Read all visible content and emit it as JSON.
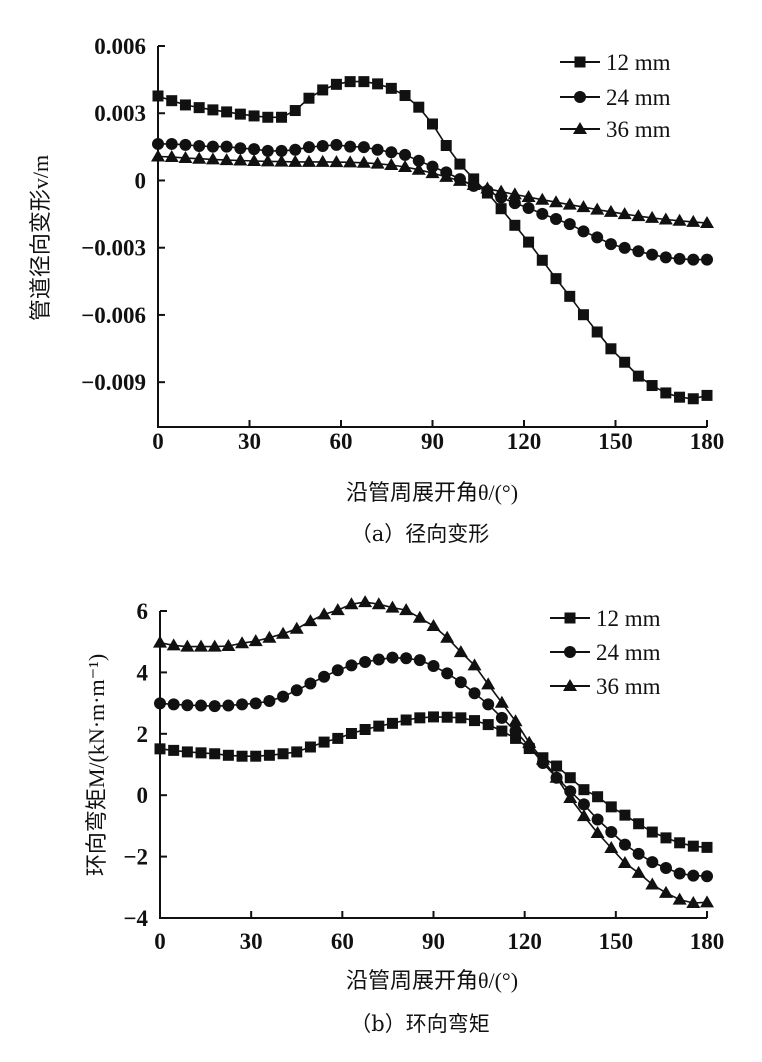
{
  "chart_data": [
    {
      "type": "line",
      "caption": "（a）径向变形",
      "xlabel": "沿管周展开角θ/(°)",
      "ylabel": "管道径向变形v/m",
      "xlim": [
        0,
        180
      ],
      "ylim": [
        -0.011,
        0.006
      ],
      "xticks": [
        "0",
        "30",
        "60",
        "90",
        "120",
        "150",
        "180"
      ],
      "yticks": [
        "0.006",
        "0.003",
        "0",
        "-0.003",
        "-0.006",
        "-0.009"
      ],
      "ytick_values": [
        0.006,
        0.003,
        0,
        -0.003,
        -0.006,
        -0.009
      ],
      "legend_position": "top-right",
      "grid": false,
      "x": [
        0,
        4.5,
        9,
        13.5,
        18,
        22.5,
        27,
        31.5,
        36,
        40.5,
        45,
        49.5,
        54,
        58.5,
        63,
        67.5,
        72,
        76.5,
        81,
        85.5,
        90,
        94.5,
        99,
        103.5,
        108,
        112.5,
        117,
        121.5,
        126,
        130.5,
        135,
        139.5,
        144,
        148.5,
        153,
        157.5,
        162,
        166.5,
        171,
        175.5,
        180
      ],
      "series": [
        {
          "name": "12 mm",
          "marker": "square",
          "values": [
            0.00377,
            0.00356,
            0.00337,
            0.00325,
            0.00315,
            0.00306,
            0.00296,
            0.00288,
            0.00282,
            0.00282,
            0.00312,
            0.00367,
            0.00404,
            0.00429,
            0.00441,
            0.00441,
            0.00431,
            0.00411,
            0.00379,
            0.00327,
            0.00252,
            0.00156,
            0.00073,
            7e-05,
            -0.00056,
            -0.00126,
            -0.002,
            -0.00275,
            -0.00356,
            -0.00438,
            -0.00517,
            -0.00599,
            -0.00676,
            -0.00751,
            -0.00811,
            -0.00873,
            -0.00915,
            -0.00948,
            -0.00967,
            -0.00974,
            -0.00959
          ]
        },
        {
          "name": "24 mm",
          "marker": "circle",
          "values": [
            0.00163,
            0.00163,
            0.00159,
            0.00154,
            0.00151,
            0.00151,
            0.00144,
            0.0014,
            0.00132,
            0.00132,
            0.00137,
            0.00149,
            0.00154,
            0.00159,
            0.00151,
            0.00149,
            0.00137,
            0.00126,
            0.00114,
            0.00088,
            0.00062,
            0.00036,
            6e-05,
            -0.00024,
            -0.00046,
            -0.00076,
            -0.00101,
            -0.00123,
            -0.00149,
            -0.00172,
            -0.00195,
            -0.00227,
            -0.00254,
            -0.00284,
            -0.00301,
            -0.00316,
            -0.00331,
            -0.00343,
            -0.0035,
            -0.00353,
            -0.00353
          ]
        },
        {
          "name": "36 mm",
          "marker": "triangle",
          "values": [
            0.00107,
            0.00105,
            0.001,
            0.00097,
            0.00094,
            0.00091,
            0.00089,
            0.00087,
            0.00085,
            0.00084,
            0.00083,
            0.00083,
            0.00083,
            0.00082,
            0.00081,
            0.00079,
            0.00075,
            0.00069,
            0.0006,
            0.00048,
            0.00033,
            0.00016,
            -2e-05,
            -0.0002,
            -0.00036,
            -0.0005,
            -0.00062,
            -0.00074,
            -0.00086,
            -0.00097,
            -0.00108,
            -0.00119,
            -0.0013,
            -0.0014,
            -0.0015,
            -0.00159,
            -0.00167,
            -0.00174,
            -0.0018,
            -0.00185,
            -0.0019
          ]
        }
      ]
    },
    {
      "type": "line",
      "caption": "（b）环向弯矩",
      "xlabel": "沿管周展开角θ/(°)",
      "ylabel": "环向弯矩M/(kN·m·m⁻¹)",
      "xlim": [
        0,
        180
      ],
      "ylim": [
        -4,
        6
      ],
      "xticks": [
        "0",
        "30",
        "60",
        "90",
        "120",
        "150",
        "180"
      ],
      "yticks": [
        "6",
        "4",
        "2",
        "0",
        "-2",
        "-4"
      ],
      "ytick_values": [
        6,
        4,
        2,
        0,
        -2,
        -4
      ],
      "legend_position": "top-right",
      "grid": false,
      "x": [
        0,
        4.5,
        9,
        13.5,
        18,
        22.5,
        27,
        31.5,
        36,
        40.5,
        45,
        49.5,
        54,
        58.5,
        63,
        67.5,
        72,
        76.5,
        81,
        85.5,
        90,
        94.5,
        99,
        103.5,
        108,
        112.5,
        117,
        121.5,
        126,
        130.5,
        135,
        139.5,
        144,
        148.5,
        153,
        157.5,
        162,
        166.5,
        171,
        175.5,
        180
      ],
      "series": [
        {
          "name": "12 mm",
          "marker": "square",
          "values": [
            1.51,
            1.46,
            1.41,
            1.38,
            1.35,
            1.3,
            1.27,
            1.27,
            1.3,
            1.35,
            1.41,
            1.57,
            1.73,
            1.85,
            2.01,
            2.14,
            2.25,
            2.34,
            2.45,
            2.52,
            2.55,
            2.54,
            2.52,
            2.43,
            2.3,
            2.09,
            1.85,
            1.52,
            1.22,
            0.95,
            0.57,
            0.18,
            -0.05,
            -0.38,
            -0.65,
            -0.93,
            -1.2,
            -1.39,
            -1.55,
            -1.66,
            -1.7
          ]
        },
        {
          "name": "24 mm",
          "marker": "circle",
          "values": [
            2.99,
            2.96,
            2.93,
            2.92,
            2.9,
            2.92,
            2.96,
            2.99,
            3.07,
            3.21,
            3.42,
            3.64,
            3.86,
            4.07,
            4.23,
            4.34,
            4.42,
            4.48,
            4.46,
            4.4,
            4.21,
            3.97,
            3.68,
            3.32,
            2.96,
            2.52,
            2.09,
            1.58,
            1.05,
            0.57,
            0.13,
            -0.3,
            -0.79,
            -1.2,
            -1.61,
            -1.91,
            -2.18,
            -2.37,
            -2.55,
            -2.62,
            -2.64
          ]
        },
        {
          "name": "36 mm",
          "marker": "triangle",
          "values": [
            4.97,
            4.88,
            4.84,
            4.84,
            4.84,
            4.86,
            4.95,
            5.02,
            5.13,
            5.26,
            5.42,
            5.67,
            5.89,
            6.03,
            6.22,
            6.29,
            6.22,
            6.11,
            6.03,
            5.78,
            5.51,
            5.13,
            4.66,
            4.23,
            3.61,
            3.01,
            2.41,
            1.71,
            1.16,
            0.57,
            -0.09,
            -0.68,
            -1.23,
            -1.72,
            -2.21,
            -2.53,
            -2.91,
            -3.18,
            -3.4,
            -3.51,
            -3.49
          ]
        }
      ]
    }
  ]
}
